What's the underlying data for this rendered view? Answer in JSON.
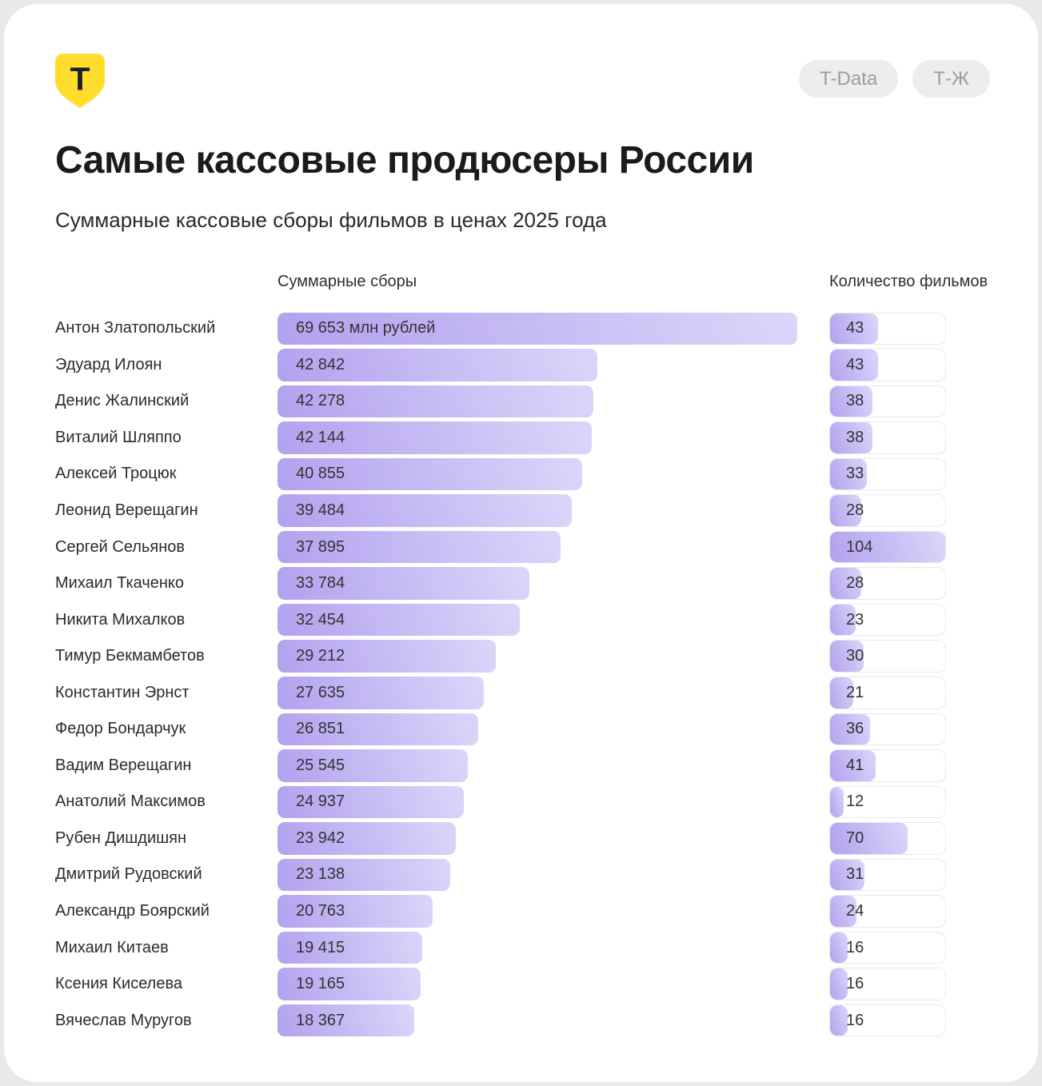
{
  "header": {
    "logo_letter": "T",
    "badges": [
      {
        "label": "T-Data"
      },
      {
        "label": "Т-Ж"
      }
    ],
    "title": "Самые кассовые продюсеры России",
    "subtitle": "Суммарные кассовые сборы фильмов в ценах 2025 года"
  },
  "chart_data": {
    "type": "bar",
    "orientation": "horizontal",
    "title": "Самые кассовые продюсеры России",
    "subtitle": "Суммарные кассовые сборы фильмов в ценах 2025 года",
    "column_headers": [
      "Суммарные сборы",
      "Количество фильмов"
    ],
    "categories": [
      "Антон Златопольский",
      "Эдуард Илоян",
      "Денис Жалинский",
      "Виталий Шляппо",
      "Алексей Троцюк",
      "Леонид Верещагин",
      "Сергей Сельянов",
      "Михаил Ткаченко",
      "Никита Михалков",
      "Тимур Бекмамбетов",
      "Константин Эрнст",
      "Федор Бондарчук",
      "Вадим Верещагин",
      "Анатолий Максимов",
      "Рубен Дишдишян",
      "Дмитрий Рудовский",
      "Александр Боярский",
      "Михаил Китаев",
      "Ксения Киселева",
      "Вячеслав Муругов"
    ],
    "series": [
      {
        "name": "Суммарные сборы, млн рублей",
        "values": [
          69653,
          42842,
          42278,
          42144,
          40855,
          39484,
          37895,
          33784,
          32454,
          29212,
          27635,
          26851,
          25545,
          24937,
          23942,
          23138,
          20763,
          19415,
          19165,
          18367
        ],
        "labels": [
          "69 653 млн рублей",
          "42 842",
          "42 278",
          "42 144",
          "40 855",
          "39 484",
          "37 895",
          "33 784",
          "32 454",
          "29 212",
          "27 635",
          "26 851",
          "25 545",
          "24 937",
          "23 942",
          "23 138",
          "20 763",
          "19 415",
          "19 165",
          "18 367"
        ]
      },
      {
        "name": "Количество фильмов",
        "values": [
          43,
          43,
          38,
          38,
          33,
          28,
          104,
          28,
          23,
          30,
          21,
          36,
          41,
          12,
          70,
          31,
          24,
          16,
          16,
          16
        ]
      }
    ],
    "xlim_revenue": [
      0,
      69653
    ],
    "xlim_films": [
      0,
      104
    ],
    "grid": false,
    "legend": "none",
    "colors": {
      "bar_gradient_from": "#b2a1ee",
      "bar_gradient_to": "#dcd6fa",
      "track_border": "#e8e8f0",
      "logo_yellow": "#ffdd2d"
    }
  }
}
